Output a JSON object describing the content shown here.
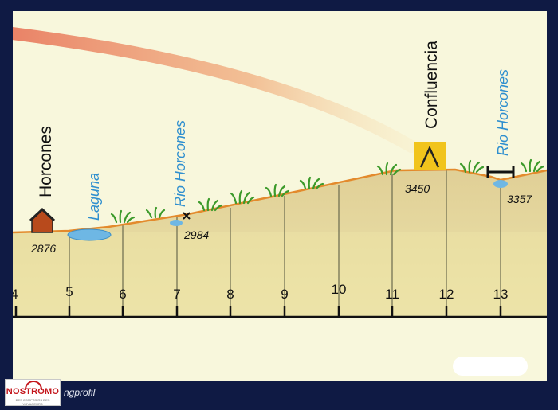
{
  "labels": {
    "horcones": "Horcones",
    "laguna": "Laguna",
    "rio_horcones_1": "Rio Horcones",
    "confluencia": "Confluencia",
    "rio_horcones_2": "Rio Horcones"
  },
  "elevations": {
    "start": "2876",
    "river_crossing": "2984",
    "confluencia": "3450",
    "end": "3357"
  },
  "axis_ticks": [
    "4",
    "5",
    "6",
    "7",
    "8",
    "9",
    "10",
    "11",
    "12",
    "13"
  ],
  "footer": {
    "logo": "NOSTROMO",
    "logo_tagline": "DES COMPTOIRS DES VOYAGEURS",
    "caption": "ngprofil"
  },
  "colors": {
    "terrain": "#e2d69a",
    "profile_line": "#e38a2c",
    "water": "#6eb7e4",
    "label_blue": "#2f8fcf",
    "camp_sign": "#f1c41c",
    "background": "#f8f7dc"
  }
}
